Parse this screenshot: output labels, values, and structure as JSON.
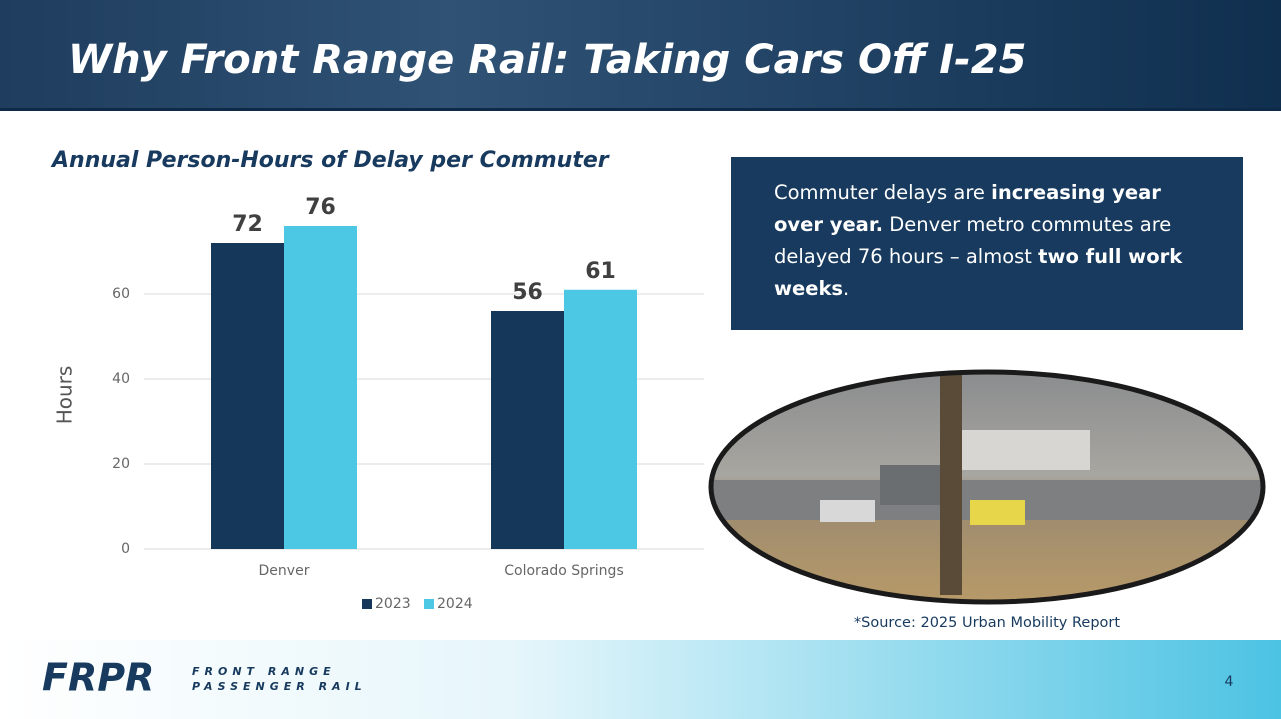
{
  "header": {
    "title": "Why Front Range Rail: Taking Cars Off I-25"
  },
  "chart_data": {
    "type": "bar",
    "title": "Annual Person-Hours of Delay per Commuter",
    "y_label": "Hours",
    "categories": [
      "Denver",
      "Colorado Springs"
    ],
    "series": [
      {
        "name": "2023",
        "color": "#14375a",
        "values": [
          72,
          56
        ]
      },
      {
        "name": "2024",
        "color": "#4cc8e5",
        "values": [
          76,
          61
        ]
      }
    ],
    "ylim": [
      0,
      80
    ],
    "yticks": [
      0,
      20,
      40,
      60
    ],
    "grid": true,
    "legend": "bottom"
  },
  "callout": {
    "segments": [
      {
        "text": "Commuter delays are ",
        "bold": false
      },
      {
        "text": "increasing year over year.",
        "bold": true
      },
      {
        "text": " Denver metro commutes are delayed 76 hours – almost ",
        "bold": false
      },
      {
        "text": "two full work weeks",
        "bold": true
      },
      {
        "text": ".",
        "bold": false
      }
    ]
  },
  "source": "*Source:  2025 Urban Mobility Report",
  "logo": {
    "mark": "FRPR",
    "line1": "FRONT RANGE",
    "line2": "PASSENGER RAIL"
  },
  "page_number": 4
}
